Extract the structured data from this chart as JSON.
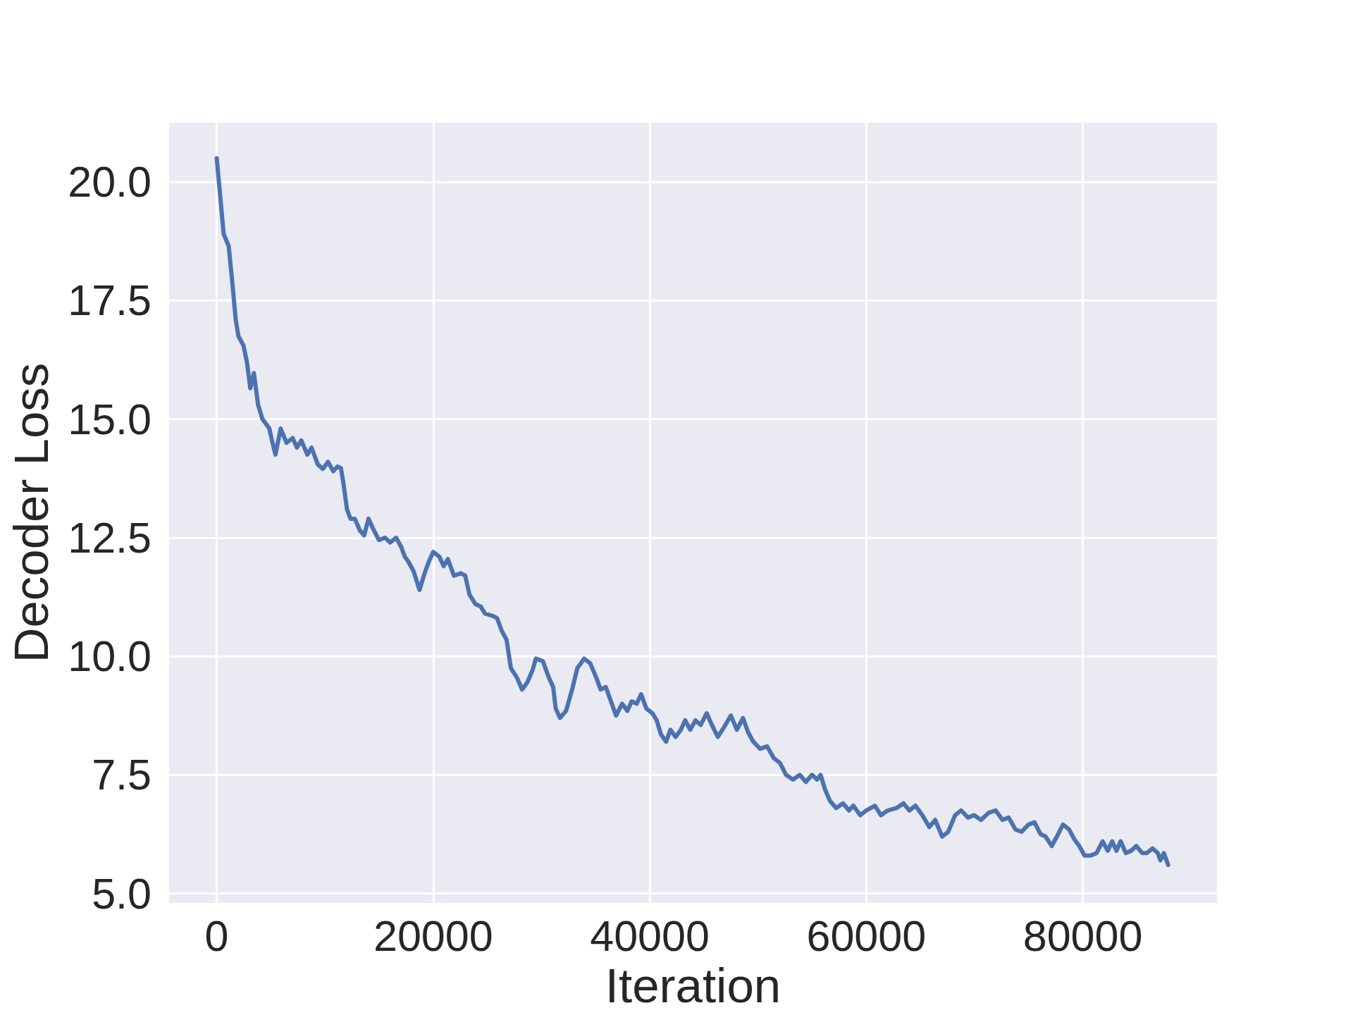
{
  "chart_data": {
    "type": "line",
    "xlabel": "Iteration",
    "ylabel": "Decoder Loss",
    "xlim": [
      -4400,
      92400
    ],
    "xticks": [
      0,
      20000,
      40000,
      60000,
      80000
    ],
    "ylim": [
      4.8,
      21.25
    ],
    "yticks": [
      {
        "value": 5,
        "label": "5.0"
      },
      {
        "value": 7.5,
        "label": "7.5"
      },
      {
        "value": 10,
        "label": "10.0"
      },
      {
        "value": 12.5,
        "label": "12.5"
      },
      {
        "value": 15,
        "label": "15.0"
      },
      {
        "value": 17.5,
        "label": "17.5"
      },
      {
        "value": 20,
        "label": "20.0"
      }
    ],
    "grid": true,
    "marker": "none",
    "line_style": "solid",
    "x": [
      0,
      300,
      640,
      1100,
      1430,
      1750,
      2000,
      2470,
      2790,
      3100,
      3430,
      3820,
      4220,
      4860,
      5100,
      5420,
      5900,
      6450,
      7010,
      7410,
      7810,
      8370,
      8760,
      9320,
      9800,
      10280,
      10760,
      11150,
      11470,
      11700,
      12030,
      12350,
      12750,
      13230,
      13620,
      14020,
      14420,
      14980,
      15540,
      16020,
      16570,
      17050,
      17370,
      17690,
      18170,
      18730,
      19200,
      19600,
      20000,
      20560,
      20960,
      21350,
      21910,
      22550,
      22950,
      23350,
      23900,
      24380,
      24780,
      25500,
      25900,
      26300,
      26770,
      27170,
      27730,
      28210,
      28690,
      29160,
      29480,
      30120,
      30680,
      31080,
      31310,
      31710,
      32270,
      32830,
      33310,
      33940,
      34500,
      35060,
      35460,
      35940,
      36490,
      36890,
      37450,
      37930,
      38330,
      38800,
      39200,
      39680,
      40240,
      40640,
      41040,
      41510,
      41910,
      42390,
      42870,
      43270,
      43740,
      44220,
      44700,
      45260,
      45740,
      46290,
      46850,
      47490,
      48050,
      48610,
      49080,
      49560,
      50200,
      50840,
      51470,
      52030,
      52590,
      53230,
      53860,
      54420,
      54980,
      55460,
      55780,
      56180,
      56650,
      57210,
      57850,
      58410,
      58800,
      59440,
      60000,
      60800,
      61350,
      61990,
      62790,
      63430,
      63980,
      64540,
      65180,
      65820,
      66370,
      67010,
      67570,
      68210,
      68760,
      69400,
      69960,
      70600,
      71310,
      71950,
      72590,
      73150,
      73780,
      74340,
      74980,
      75540,
      76100,
      76570,
      77130,
      77610,
      78170,
      78730,
      79200,
      79680,
      80160,
      80720,
      81270,
      81830,
      82310,
      82710,
      83110,
      83500,
      83980,
      84460,
      84940,
      85500,
      85900,
      86450,
      86930,
      87170,
      87490,
      87890
    ],
    "series": [
      {
        "color": "#4c72b0",
        "values": [
          20.5,
          19.75,
          18.9,
          18.65,
          17.9,
          17.1,
          16.75,
          16.55,
          16.2,
          15.65,
          15.97,
          15.3,
          15.0,
          14.8,
          14.55,
          14.25,
          14.8,
          14.5,
          14.6,
          14.4,
          14.55,
          14.25,
          14.4,
          14.05,
          13.95,
          14.1,
          13.9,
          14.0,
          13.97,
          13.65,
          13.1,
          12.9,
          12.9,
          12.65,
          12.55,
          12.9,
          12.7,
          12.45,
          12.5,
          12.4,
          12.5,
          12.3,
          12.1,
          12.0,
          11.8,
          11.4,
          11.75,
          12.0,
          12.2,
          12.1,
          11.9,
          12.05,
          11.7,
          11.75,
          11.7,
          11.3,
          11.1,
          11.05,
          10.9,
          10.85,
          10.8,
          10.55,
          10.35,
          9.75,
          9.55,
          9.3,
          9.45,
          9.7,
          9.95,
          9.9,
          9.55,
          9.35,
          8.9,
          8.7,
          8.85,
          9.3,
          9.75,
          9.95,
          9.85,
          9.55,
          9.3,
          9.35,
          9.0,
          8.75,
          9.0,
          8.85,
          9.05,
          9.0,
          9.2,
          8.9,
          8.8,
          8.65,
          8.35,
          8.2,
          8.45,
          8.3,
          8.45,
          8.65,
          8.45,
          8.65,
          8.55,
          8.8,
          8.55,
          8.3,
          8.5,
          8.75,
          8.45,
          8.7,
          8.4,
          8.2,
          8.05,
          8.1,
          7.85,
          7.75,
          7.5,
          7.4,
          7.5,
          7.35,
          7.5,
          7.4,
          7.5,
          7.2,
          6.95,
          6.8,
          6.9,
          6.75,
          6.85,
          6.65,
          6.75,
          6.85,
          6.65,
          6.75,
          6.8,
          6.9,
          6.75,
          6.85,
          6.65,
          6.4,
          6.55,
          6.2,
          6.3,
          6.65,
          6.75,
          6.6,
          6.65,
          6.55,
          6.7,
          6.75,
          6.55,
          6.6,
          6.35,
          6.3,
          6.45,
          6.5,
          6.25,
          6.2,
          6.0,
          6.2,
          6.45,
          6.35,
          6.15,
          6.0,
          5.8,
          5.8,
          5.85,
          6.1,
          5.9,
          6.1,
          5.9,
          6.1,
          5.85,
          5.9,
          6.0,
          5.85,
          5.85,
          5.95,
          5.85,
          5.7,
          5.85,
          5.6
        ]
      }
    ]
  }
}
